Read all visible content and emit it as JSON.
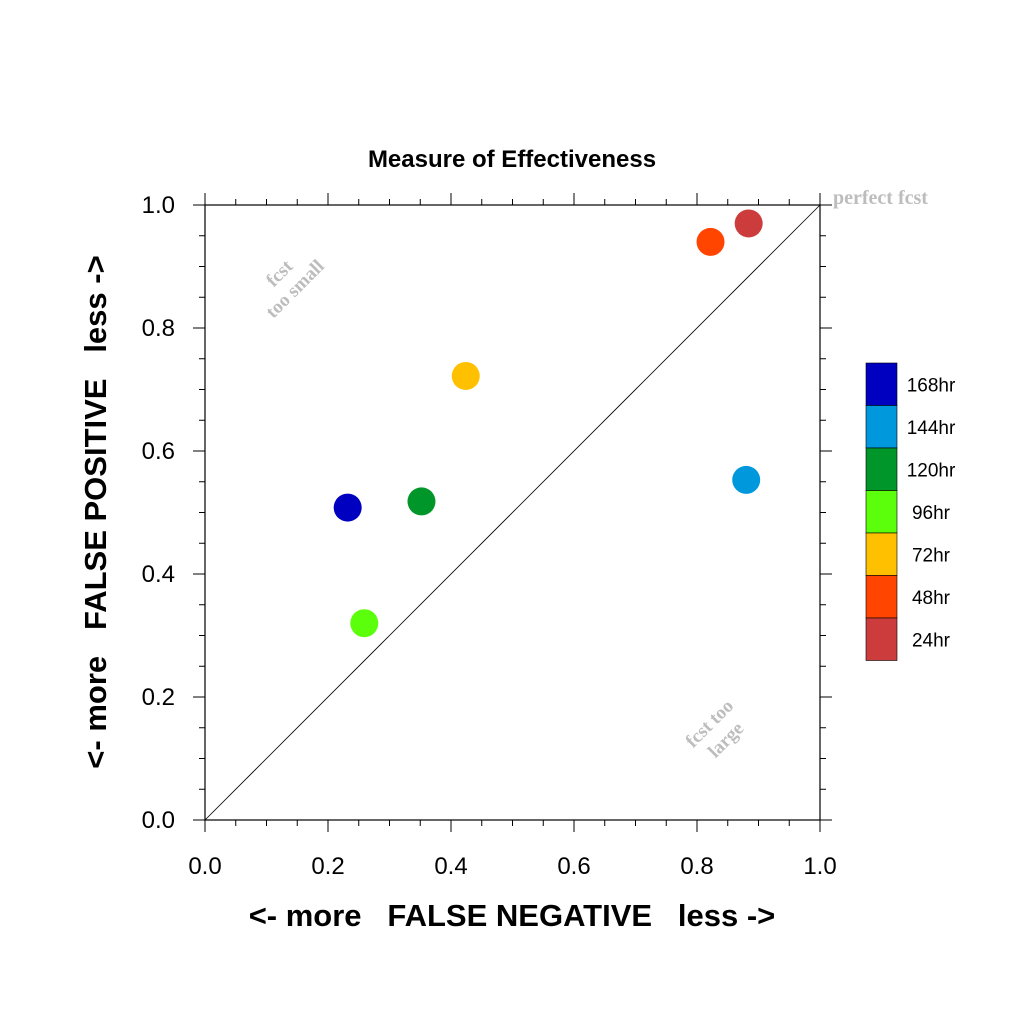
{
  "chart_data": {
    "type": "scatter",
    "title": "Measure of Effectiveness",
    "xlabel": "<- more   FALSE NEGATIVE   less ->",
    "ylabel": "<- more   FALSE POSITIVE   less ->",
    "xlim": [
      0.0,
      1.0
    ],
    "ylim": [
      0.0,
      1.0
    ],
    "x_ticks": [
      "0.0",
      "0.2",
      "0.4",
      "0.6",
      "0.8",
      "1.0"
    ],
    "y_ticks": [
      "0.0",
      "0.2",
      "0.4",
      "0.6",
      "0.8",
      "1.0"
    ],
    "grid": false,
    "diagonal_reference_line": true,
    "annotations": {
      "perfect": "perfect fcst",
      "too_small_1": "fcst",
      "too_small_2": "too small",
      "too_large_1": "fcst too",
      "too_large_2": "large"
    },
    "legend_position": "right",
    "series": [
      {
        "name": "168hr",
        "color": "#0000c0",
        "x": 0.232,
        "y": 0.508
      },
      {
        "name": "144hr",
        "color": "#0098dc",
        "x": 0.88,
        "y": 0.553
      },
      {
        "name": "120hr",
        "color": "#00962a",
        "x": 0.352,
        "y": 0.518
      },
      {
        "name": "96hr",
        "color": "#5bff0c",
        "x": 0.259,
        "y": 0.32
      },
      {
        "name": "72hr",
        "color": "#ffc000",
        "x": 0.424,
        "y": 0.722
      },
      {
        "name": "48hr",
        "color": "#ff4500",
        "x": 0.822,
        "y": 0.94
      },
      {
        "name": "24hr",
        "color": "#cc3c3c",
        "x": 0.884,
        "y": 0.97
      }
    ]
  }
}
